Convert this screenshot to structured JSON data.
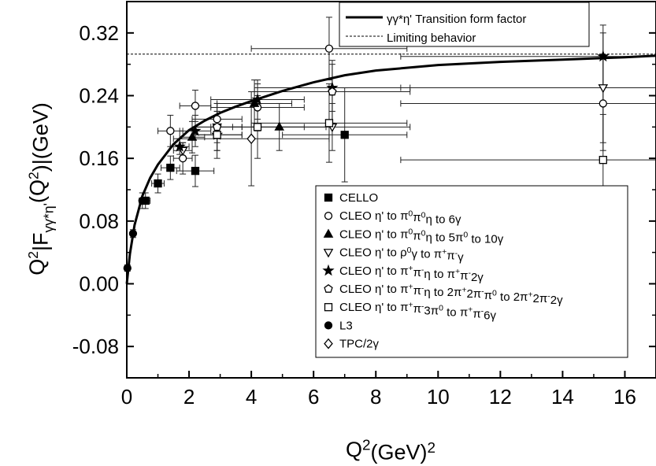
{
  "chart_data": {
    "type": "scatter",
    "title": "",
    "xlabel": "Q2(GeV)2",
    "ylabel": "Q2|F γγ*η'(Q2)|(GeV)",
    "xlim": [
      0,
      17
    ],
    "ylim": [
      -0.12,
      0.36
    ],
    "x_ticks": [
      0,
      2,
      4,
      6,
      8,
      10,
      12,
      14,
      16
    ],
    "y_ticks": [
      -0.08,
      0.0,
      0.08,
      0.16,
      0.24,
      0.32
    ],
    "y_tick_labels": [
      "-0.08",
      "0.00",
      "0.08",
      "0.16",
      "0.24",
      "0.32"
    ],
    "grid": false,
    "curves": [
      {
        "name": "γγ*η' Transition form factor",
        "style": "solid",
        "x": [
          0,
          0.1,
          0.25,
          0.5,
          0.75,
          1,
          1.5,
          2,
          2.5,
          3,
          3.5,
          4,
          5,
          6,
          7,
          8,
          10,
          12,
          14,
          16,
          17
        ],
        "y": [
          0,
          0.038,
          0.075,
          0.112,
          0.135,
          0.152,
          0.178,
          0.196,
          0.208,
          0.218,
          0.226,
          0.233,
          0.246,
          0.257,
          0.266,
          0.272,
          0.279,
          0.283,
          0.286,
          0.289,
          0.291
        ]
      },
      {
        "name": "Limiting behavior",
        "style": "dashed",
        "x": [
          0,
          17
        ],
        "y": [
          0.293,
          0.293
        ]
      }
    ],
    "series": [
      {
        "name": "CELLO",
        "marker": "square-filled",
        "points": [
          {
            "x": 0.6,
            "y": 0.106,
            "xerr": 0.15,
            "yerr": 0.01
          },
          {
            "x": 1.0,
            "y": 0.128,
            "xerr": 0.2,
            "yerr": 0.012
          },
          {
            "x": 1.4,
            "y": 0.148,
            "xerr": 0.3,
            "yerr": 0.015
          },
          {
            "x": 2.2,
            "y": 0.144,
            "xerr": 0.6,
            "yerr": 0.02
          },
          {
            "x": 7.0,
            "y": 0.19,
            "xerr": 2.0,
            "yerr": 0.06
          }
        ]
      },
      {
        "name": "CLEO η' to π0π0η to 6γ",
        "marker": "circle-open",
        "points": [
          {
            "x": 1.4,
            "y": 0.195,
            "xerr": 0.4,
            "yerr": 0.02
          },
          {
            "x": 1.8,
            "y": 0.16,
            "xerr": 0.3,
            "yerr": 0.02
          },
          {
            "x": 2.2,
            "y": 0.227,
            "xerr": 0.5,
            "yerr": 0.02
          },
          {
            "x": 2.9,
            "y": 0.21,
            "xerr": 0.8,
            "yerr": 0.02
          },
          {
            "x": 4.2,
            "y": 0.225,
            "xerr": 1.5,
            "yerr": 0.03
          },
          {
            "x": 6.5,
            "y": 0.3,
            "xerr": 2.5,
            "yerr": 0.04
          },
          {
            "x": 15.3,
            "y": 0.23,
            "xerr": 6.5,
            "yerr": 0.06
          }
        ]
      },
      {
        "name": "CLEO η' to π0π0η to 5π0 to 10γ",
        "marker": "triangle-up-filled",
        "points": [
          {
            "x": 2.1,
            "y": 0.187,
            "xerr": 0.4,
            "yerr": 0.02
          },
          {
            "x": 4.1,
            "y": 0.23,
            "xerr": 1.2,
            "yerr": 0.03
          },
          {
            "x": 4.9,
            "y": 0.2,
            "xerr": 1.5,
            "yerr": 0.03
          }
        ]
      },
      {
        "name": "CLEO η' to ρ0γ to π+π-γ",
        "marker": "triangle-down-open",
        "points": [
          {
            "x": 1.8,
            "y": 0.17,
            "xerr": 0.3,
            "yerr": 0.01
          },
          {
            "x": 2.9,
            "y": 0.2,
            "xerr": 0.8,
            "yerr": 0.02
          },
          {
            "x": 6.6,
            "y": 0.2,
            "xerr": 2.5,
            "yerr": 0.03
          },
          {
            "x": 15.3,
            "y": 0.25,
            "xerr": 6.5,
            "yerr": 0.07
          }
        ]
      },
      {
        "name": "CLEO η' to π+π-η to π+π-2γ",
        "marker": "star-filled",
        "points": [
          {
            "x": 1.7,
            "y": 0.175,
            "xerr": 0.3,
            "yerr": 0.01
          },
          {
            "x": 2.2,
            "y": 0.195,
            "xerr": 0.5,
            "yerr": 0.02
          },
          {
            "x": 2.9,
            "y": 0.19,
            "xerr": 0.8,
            "yerr": 0.02
          },
          {
            "x": 4.2,
            "y": 0.235,
            "xerr": 1.5,
            "yerr": 0.025
          },
          {
            "x": 6.6,
            "y": 0.25,
            "xerr": 2.5,
            "yerr": 0.03
          },
          {
            "x": 15.3,
            "y": 0.29,
            "xerr": 6.5,
            "yerr": 0.04
          }
        ]
      },
      {
        "name": "CLEO η' to π+π-η to 2π+2π-π0 to 2π+2π-2γ",
        "marker": "pentagon-open",
        "points": [
          {
            "x": 2.9,
            "y": 0.2,
            "xerr": 0.8,
            "yerr": 0.03
          },
          {
            "x": 6.6,
            "y": 0.245,
            "xerr": 2.5,
            "yerr": 0.04
          }
        ]
      },
      {
        "name": "CLEO η' to π+π-3π0 to π+π-6γ",
        "marker": "square-open",
        "points": [
          {
            "x": 2.9,
            "y": 0.19,
            "xerr": 0.8,
            "yerr": 0.03
          },
          {
            "x": 4.2,
            "y": 0.2,
            "xerr": 1.5,
            "yerr": 0.04
          },
          {
            "x": 6.5,
            "y": 0.205,
            "xerr": 2.5,
            "yerr": 0.05
          },
          {
            "x": 15.3,
            "y": 0.158,
            "xerr": 6.5,
            "yerr": 0.058
          }
        ]
      },
      {
        "name": "L3",
        "marker": "circle-filled",
        "points": [
          {
            "x": 0.02,
            "y": 0.02,
            "xerr": 0.0,
            "yerr": 0.004
          },
          {
            "x": 0.2,
            "y": 0.064,
            "xerr": 0.05,
            "yerr": 0.005
          },
          {
            "x": 0.5,
            "y": 0.106,
            "xerr": 0.1,
            "yerr": 0.01
          }
        ]
      },
      {
        "name": "TPC/2γ",
        "marker": "diamond-open",
        "points": [
          {
            "x": 4.0,
            "y": 0.185,
            "xerr": 2.5,
            "yerr": 0.06
          }
        ]
      }
    ],
    "legend_top": {
      "placement": "top-right",
      "entries": [
        {
          "name": "γγ*η' Transition form factor",
          "style": "solid"
        },
        {
          "name": "Limiting behavior",
          "style": "dashed"
        }
      ]
    },
    "legend_markers": {
      "placement": "center-right",
      "entries": [
        {
          "marker": "square-filled",
          "parts": [
            {
              "t": "CELLO"
            }
          ]
        },
        {
          "marker": "circle-open",
          "parts": [
            {
              "t": "CLEO η' to π"
            },
            {
              "t": "0",
              "sup": true
            },
            {
              "t": "π"
            },
            {
              "t": "0",
              "sup": true
            },
            {
              "t": "η to 6γ"
            }
          ]
        },
        {
          "marker": "triangle-up-filled",
          "parts": [
            {
              "t": "CLEO η' to π"
            },
            {
              "t": "0",
              "sup": true
            },
            {
              "t": "π"
            },
            {
              "t": "0",
              "sup": true
            },
            {
              "t": "η to 5π"
            },
            {
              "t": "0",
              "sup": true
            },
            {
              "t": " to 10γ"
            }
          ]
        },
        {
          "marker": "triangle-down-open",
          "parts": [
            {
              "t": "CLEO η' to ρ"
            },
            {
              "t": "0",
              "sup": true
            },
            {
              "t": "γ to π"
            },
            {
              "t": "+",
              "sup": true
            },
            {
              "t": "π"
            },
            {
              "t": "-",
              "sup": true
            },
            {
              "t": "γ"
            }
          ]
        },
        {
          "marker": "star-filled",
          "parts": [
            {
              "t": "CLEO η' to π"
            },
            {
              "t": "+",
              "sup": true
            },
            {
              "t": "π"
            },
            {
              "t": "-",
              "sup": true
            },
            {
              "t": "η to π"
            },
            {
              "t": "+",
              "sup": true
            },
            {
              "t": "π"
            },
            {
              "t": "-",
              "sup": true
            },
            {
              "t": "2γ"
            }
          ]
        },
        {
          "marker": "pentagon-open",
          "parts": [
            {
              "t": "CLEO η' to π"
            },
            {
              "t": "+",
              "sup": true
            },
            {
              "t": "π"
            },
            {
              "t": "-",
              "sup": true
            },
            {
              "t": "η to 2π"
            },
            {
              "t": "+",
              "sup": true
            },
            {
              "t": "2π"
            },
            {
              "t": "-",
              "sup": true
            },
            {
              "t": "π"
            },
            {
              "t": "0",
              "sup": true
            },
            {
              "t": " to 2π"
            },
            {
              "t": "+",
              "sup": true
            },
            {
              "t": "2π"
            },
            {
              "t": "-",
              "sup": true
            },
            {
              "t": "2γ"
            }
          ]
        },
        {
          "marker": "square-open",
          "parts": [
            {
              "t": "CLEO η' to π"
            },
            {
              "t": "+",
              "sup": true
            },
            {
              "t": "π"
            },
            {
              "t": "-",
              "sup": true
            },
            {
              "t": "3π"
            },
            {
              "t": "0",
              "sup": true
            },
            {
              "t": " to π"
            },
            {
              "t": "+",
              "sup": true
            },
            {
              "t": "π"
            },
            {
              "t": "-",
              "sup": true
            },
            {
              "t": "6γ"
            }
          ]
        },
        {
          "marker": "circle-filled",
          "parts": [
            {
              "t": "L3"
            }
          ]
        },
        {
          "marker": "diamond-open",
          "parts": [
            {
              "t": "TPC/2γ"
            }
          ]
        }
      ]
    }
  }
}
